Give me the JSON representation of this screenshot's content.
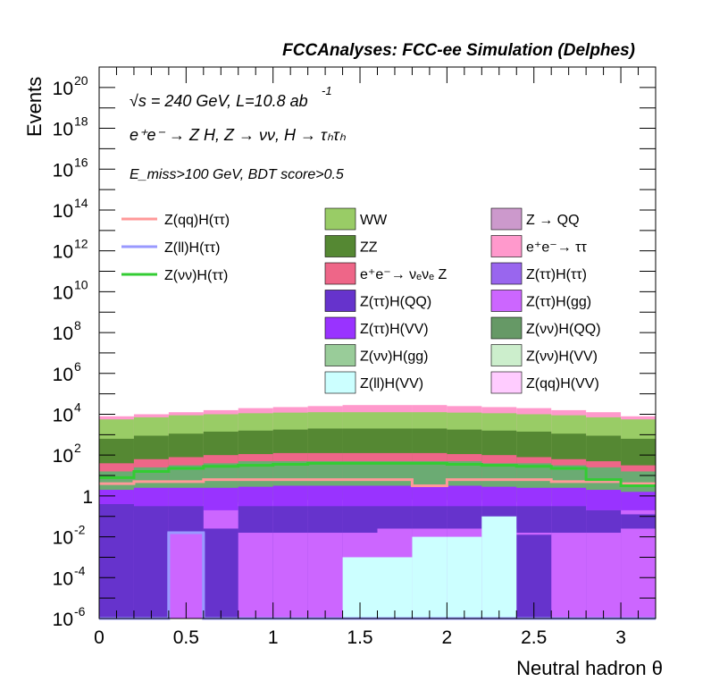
{
  "chart_data": {
    "type": "area",
    "title": "FCCAnalyses: FCC-ee Simulation (Delphes)",
    "xlabel": "Neutral hadron θ",
    "ylabel": "Events",
    "xlim": [
      0,
      3.2
    ],
    "ylim": [
      1e-06,
      1e+21
    ],
    "log_y": true,
    "x_ticks": [
      "0",
      "0.5",
      "1",
      "1.5",
      "2",
      "2.5",
      "3"
    ],
    "x_tick_values": [
      0,
      0.5,
      1,
      1.5,
      2,
      2.5,
      3
    ],
    "y_ticks": [
      {
        "exp": -6,
        "label_base": "10",
        "label_exp": "-6"
      },
      {
        "exp": -4,
        "label_base": "10",
        "label_exp": "-4"
      },
      {
        "exp": -2,
        "label_base": "10",
        "label_exp": "-2"
      },
      {
        "exp": 0,
        "label_base": "1",
        "label_exp": ""
      },
      {
        "exp": 2,
        "label_base": "10",
        "label_exp": "2"
      },
      {
        "exp": 4,
        "label_base": "10",
        "label_exp": "4"
      },
      {
        "exp": 6,
        "label_base": "10",
        "label_exp": "6"
      },
      {
        "exp": 8,
        "label_base": "10",
        "label_exp": "8"
      },
      {
        "exp": 10,
        "label_base": "10",
        "label_exp": "10"
      },
      {
        "exp": 12,
        "label_base": "10",
        "label_exp": "12"
      },
      {
        "exp": 14,
        "label_base": "10",
        "label_exp": "14"
      },
      {
        "exp": 16,
        "label_base": "10",
        "label_exp": "16"
      },
      {
        "exp": 18,
        "label_base": "10",
        "label_exp": "18"
      },
      {
        "exp": 20,
        "label_base": "10",
        "label_exp": "20"
      }
    ],
    "annotations": {
      "energy_line": "√s = 240 GeV, L=10.8 ab",
      "energy_line_exp": "-1",
      "process_line": "e⁺e⁻ → Z H, Z → νν, H → τₕτₕ",
      "selection_line": "E_miss>100 GeV, BDT score>0.5"
    },
    "bin_edges": [
      0,
      0.2,
      0.4,
      0.6,
      0.8,
      1.0,
      1.2,
      1.4,
      1.6,
      1.8,
      2.0,
      2.2,
      2.4,
      2.6,
      2.8,
      3.0,
      3.2
    ],
    "stack_boundaries": [
      {
        "color": "#ffccff",
        "log10": [
          -0.8,
          -0.6,
          -0.5,
          -0.4,
          -0.3,
          -0.2,
          -0.2,
          -0.2,
          -0.2,
          -0.2,
          -0.2,
          -0.3,
          -0.3,
          -0.4,
          -0.5,
          -0.7
        ]
      },
      {
        "color": "#6bab73",
        "log10": [
          1.2,
          1.4,
          1.5,
          1.6,
          1.7,
          1.7,
          1.7,
          1.7,
          1.7,
          1.7,
          1.7,
          1.6,
          1.6,
          1.5,
          1.4,
          1.2
        ]
      },
      {
        "color": "#ee6688",
        "log10": [
          1.6,
          1.8,
          1.9,
          2.0,
          2.05,
          2.1,
          2.1,
          2.1,
          2.1,
          2.1,
          2.05,
          2.0,
          1.9,
          1.8,
          1.7,
          1.5
        ]
      },
      {
        "color": "#558833",
        "log10": [
          2.8,
          2.95,
          3.05,
          3.15,
          3.2,
          3.25,
          3.3,
          3.3,
          3.3,
          3.3,
          3.25,
          3.2,
          3.15,
          3.05,
          2.95,
          2.8
        ]
      },
      {
        "color": "#99cc66",
        "log10": [
          3.75,
          3.85,
          3.95,
          4.0,
          4.05,
          4.08,
          4.1,
          4.1,
          4.1,
          4.1,
          4.08,
          4.05,
          4.0,
          3.95,
          3.85,
          3.75
        ]
      },
      {
        "color": "#ff99cc",
        "log10": [
          3.9,
          4.0,
          4.1,
          4.2,
          4.3,
          4.35,
          4.4,
          4.45,
          4.45,
          4.45,
          4.4,
          4.35,
          4.3,
          4.2,
          4.1,
          3.9
        ]
      }
    ],
    "low_fills": [
      {
        "color": "#cc66ff",
        "log10": [
          -0.7,
          -0.7,
          -0.7,
          -0.7,
          -0.7,
          -0.7,
          -0.7,
          -0.7,
          -0.7,
          -0.7,
          -0.7,
          -0.7,
          -0.7,
          -0.7,
          -0.7,
          -0.7
        ]
      },
      {
        "color": "#6633cc",
        "log10": [
          -0.4,
          -0.5,
          -0.5,
          -1.6,
          -0.5,
          -0.5,
          -0.5,
          -0.5,
          -0.5,
          -0.5,
          -0.5,
          -0.5,
          -0.5,
          -0.5,
          -0.7,
          -0.9
        ]
      },
      {
        "color": "#cc66ff",
        "log10": [
          -6,
          -6,
          -1.8,
          -1.8,
          -1.8,
          -1.8,
          -1.8,
          -1.8,
          -1.6,
          -1.6,
          -1.6,
          -1.6,
          -1.8,
          -1.8,
          -1.8,
          -1.6
        ]
      },
      {
        "color": "#6633cc",
        "log10": [
          -6,
          -6,
          -6,
          -1.6,
          -1.8,
          -6,
          -1.8,
          -6,
          -6,
          -6,
          -6,
          -6,
          -1.9,
          -6,
          -6,
          -6
        ]
      },
      {
        "color": "#ccffff",
        "log10": [
          -6,
          -6,
          -6,
          -6,
          -6,
          -6,
          -6,
          -3.0,
          -3.0,
          -2.0,
          -2.0,
          -1.0,
          -6,
          -6,
          -6,
          -6
        ]
      },
      {
        "color": "#cc66ff",
        "log10": [
          -6,
          -6,
          -6,
          -6,
          -1.8,
          -6,
          -1.8,
          -6,
          -6,
          -6,
          -6,
          -6,
          -6,
          -6,
          -6,
          -6
        ]
      }
    ],
    "line_series": [
      {
        "name": "Z(qq)H(ττ)",
        "color": "#ff9999",
        "log10": [
          0.6,
          0.7,
          0.7,
          0.8,
          0.8,
          0.8,
          0.8,
          0.8,
          0.8,
          0.5,
          0.8,
          0.8,
          0.8,
          0.7,
          0.7,
          0.6
        ]
      },
      {
        "name": "Z(ll)H(ττ)",
        "color": "#9999ff",
        "log10": [
          -6,
          -6,
          -1.8,
          -6,
          -6,
          -6,
          -6,
          -6,
          -6,
          -6,
          -6,
          -6,
          -6,
          -6,
          -6,
          -6
        ]
      },
      {
        "name": "Z(νν)H(ττ)",
        "color": "#33cc33",
        "log10": [
          0.9,
          1.2,
          1.35,
          1.45,
          1.5,
          1.55,
          1.6,
          1.6,
          1.6,
          1.6,
          1.55,
          1.5,
          1.45,
          1.35,
          0.8,
          0.5
        ]
      }
    ],
    "legend_lines": [
      {
        "label": "Z(qq)H(ττ)",
        "color": "#ff9999"
      },
      {
        "label": "Z(ll)H(ττ)",
        "color": "#9999ff"
      },
      {
        "label": "Z(νν)H(ττ)",
        "color": "#33cc33"
      }
    ],
    "legend_boxes": [
      {
        "label": "WW",
        "color": "#99cc66"
      },
      {
        "label": "ZZ",
        "color": "#558833"
      },
      {
        "label": "e⁺e⁻→ νₑνₑ Z",
        "color": "#ee6688"
      },
      {
        "label": "Z(ττ)H(QQ)",
        "color": "#6633cc"
      },
      {
        "label": "Z(ττ)H(VV)",
        "color": "#9933ff"
      },
      {
        "label": "Z(νν)H(gg)",
        "color": "#99cc99"
      },
      {
        "label": "Z(ll)H(VV)",
        "color": "#ccffff"
      },
      {
        "label": "Z → QQ",
        "color": "#cc99cc"
      },
      {
        "label": "e⁺e⁻→ ττ",
        "color": "#ff99cc"
      },
      {
        "label": "Z(ττ)H(ττ)",
        "color": "#9966ee"
      },
      {
        "label": "Z(ττ)H(gg)",
        "color": "#cc66ff"
      },
      {
        "label": "Z(νν)H(QQ)",
        "color": "#669966"
      },
      {
        "label": "Z(νν)H(VV)",
        "color": "#cceecc"
      },
      {
        "label": "Z(qq)H(VV)",
        "color": "#ffccff"
      }
    ]
  }
}
